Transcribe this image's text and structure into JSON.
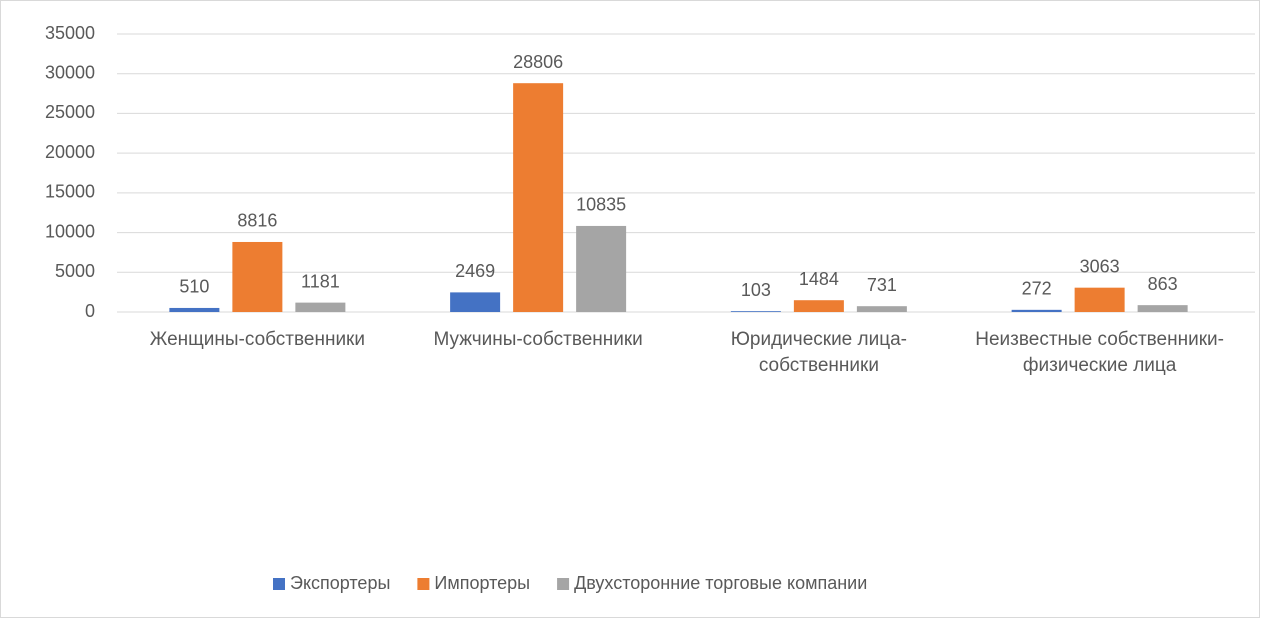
{
  "chart_data": {
    "type": "bar",
    "categories": [
      "Женщины-собственники",
      "Мужчины-собственники",
      "Юридические лица-собственники",
      "Неизвестные собственники-физические лица"
    ],
    "series": [
      {
        "name": "Экспортеры",
        "color": "#4472c4",
        "values": [
          510,
          2469,
          103,
          272
        ]
      },
      {
        "name": "Импортеры",
        "color": "#ed7d31",
        "values": [
          8816,
          28806,
          1484,
          3063
        ]
      },
      {
        "name": "Двухсторонние торговые компании",
        "color": "#a5a5a5",
        "values": [
          1181,
          10835,
          731,
          863
        ]
      }
    ],
    "ylim": [
      0,
      35000
    ],
    "yticks": [
      0,
      5000,
      10000,
      15000,
      20000,
      25000,
      30000,
      35000
    ],
    "grid": true,
    "legend": "bottom"
  }
}
